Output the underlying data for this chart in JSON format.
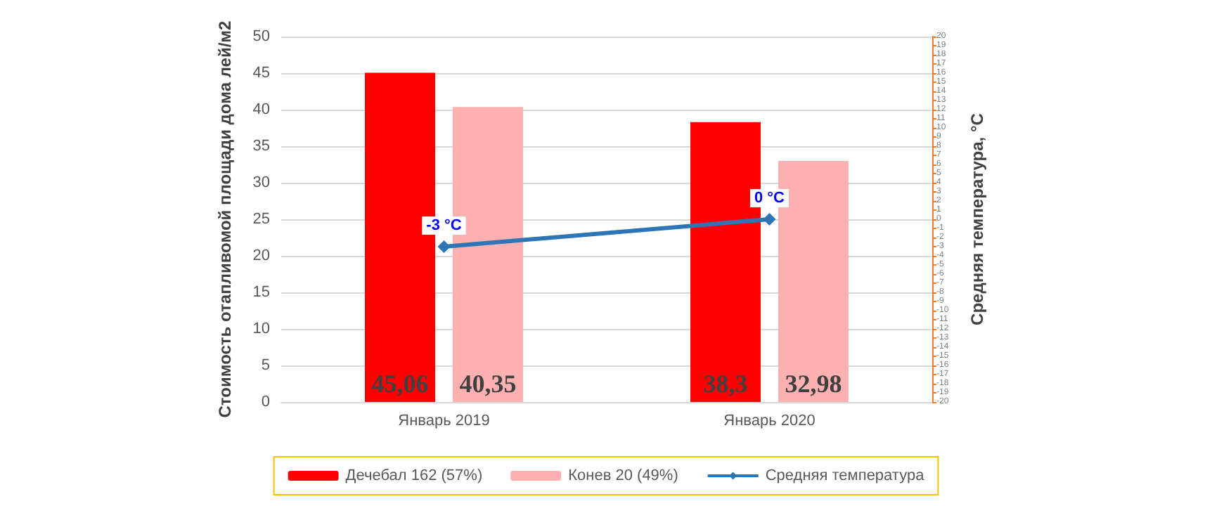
{
  "chart_data": {
    "type": "bar",
    "ylabel": "Стоимость отапливомой площади дома лей/м2",
    "y2label": "Средняя температура, °C",
    "categories": [
      "Январь 2019",
      "Январь 2020"
    ],
    "series": [
      {
        "name": "Дечебал 162 (57%)",
        "color": "#ff0000",
        "values": [
          45.06,
          38.3
        ],
        "value_labels": [
          "45,06",
          "38,3"
        ]
      },
      {
        "name": "Конев 20 (49%)",
        "color": "#ffb0b0",
        "values": [
          40.35,
          32.98
        ],
        "value_labels": [
          "40,35",
          "32,98"
        ]
      },
      {
        "name": "Средняя температура",
        "type": "line",
        "axis": "y2",
        "color": "#2e75b6",
        "values": [
          -3,
          0
        ],
        "value_labels": [
          "-3 °C",
          "0 °C"
        ],
        "marker": "diamond"
      }
    ],
    "ylim": [
      0,
      50
    ],
    "yticks": [
      0,
      5,
      10,
      15,
      20,
      25,
      30,
      35,
      40,
      45,
      50
    ],
    "y2lim": [
      -20,
      20
    ],
    "y2ticks": [
      -20,
      -19,
      -18,
      -17,
      -16,
      -15,
      -14,
      -13,
      -12,
      -11,
      -10,
      -9,
      -8,
      -7,
      -6,
      -5,
      -4,
      -3,
      -2,
      -1,
      0,
      1,
      2,
      3,
      4,
      5,
      6,
      7,
      8,
      9,
      10,
      11,
      12,
      13,
      14,
      15,
      16,
      17,
      18,
      19,
      20
    ],
    "grid": "y",
    "legend": "bottom"
  }
}
